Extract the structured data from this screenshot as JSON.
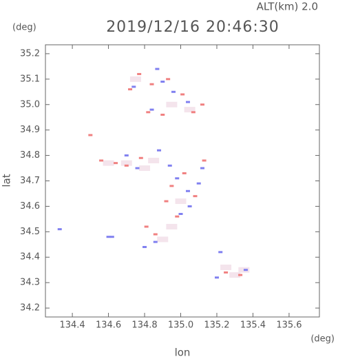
{
  "chart_data": {
    "type": "scatter",
    "title": "2019/12/16 20:46:30",
    "subtitle": "ALT(km) 2.0",
    "y_unit": "(deg)",
    "x_unit": "(deg)",
    "xlabel": "lon",
    "ylabel": "lat",
    "xlim": [
      134.251,
      135.768
    ],
    "ylim": [
      34.165,
      35.235
    ],
    "xticks": [
      134.4,
      134.6,
      134.8,
      {
        "value": 135.0,
        "label": "135.0"
      },
      135.2,
      135.4,
      135.6
    ],
    "yticks": [
      34.2,
      34.3,
      34.4,
      34.5,
      34.6,
      34.7,
      34.8,
      34.9,
      {
        "value": 35.0,
        "label": "35.0"
      },
      35.1,
      35.2
    ],
    "series": [
      {
        "color": "#f4e4ec",
        "x": [
          134.75,
          134.95,
          135.05,
          134.7,
          134.85,
          135.0,
          134.95,
          134.9,
          135.25,
          135.3,
          135.35,
          134.6,
          134.8
        ],
        "values": [
          35.1,
          35.0,
          34.98,
          34.77,
          34.78,
          34.62,
          34.52,
          34.47,
          34.36,
          34.33,
          34.35,
          34.77,
          34.75
        ]
      },
      {
        "color": "#f08080",
        "x": [
          134.72,
          134.77,
          134.84,
          134.93,
          135.01,
          135.07,
          135.12,
          134.82,
          134.9,
          134.56,
          134.64,
          134.7,
          134.78,
          134.95,
          135.02,
          135.08,
          134.86,
          134.98,
          135.25,
          135.33,
          134.5,
          134.81,
          134.92,
          135.13
        ],
        "values": [
          35.06,
          35.12,
          35.08,
          35.1,
          35.04,
          34.97,
          35.0,
          34.97,
          34.96,
          34.78,
          34.77,
          34.76,
          34.79,
          34.68,
          34.73,
          34.64,
          34.49,
          34.56,
          34.34,
          34.33,
          34.88,
          34.52,
          34.62,
          34.78
        ]
      },
      {
        "color": "#8080f0",
        "x": [
          134.74,
          134.87,
          134.9,
          134.96,
          135.04,
          134.84,
          134.76,
          134.88,
          134.98,
          135.05,
          135.1,
          134.62,
          134.8,
          135.0,
          135.04,
          134.86,
          135.2,
          135.22,
          135.36,
          134.33,
          134.6,
          134.7,
          135.12,
          134.94
        ],
        "values": [
          35.07,
          35.14,
          35.09,
          35.05,
          35.01,
          34.98,
          34.75,
          34.82,
          34.71,
          34.6,
          34.69,
          34.48,
          34.44,
          34.57,
          34.66,
          34.46,
          34.32,
          34.42,
          34.35,
          34.51,
          34.48,
          34.8,
          34.75,
          34.76
        ]
      }
    ]
  }
}
